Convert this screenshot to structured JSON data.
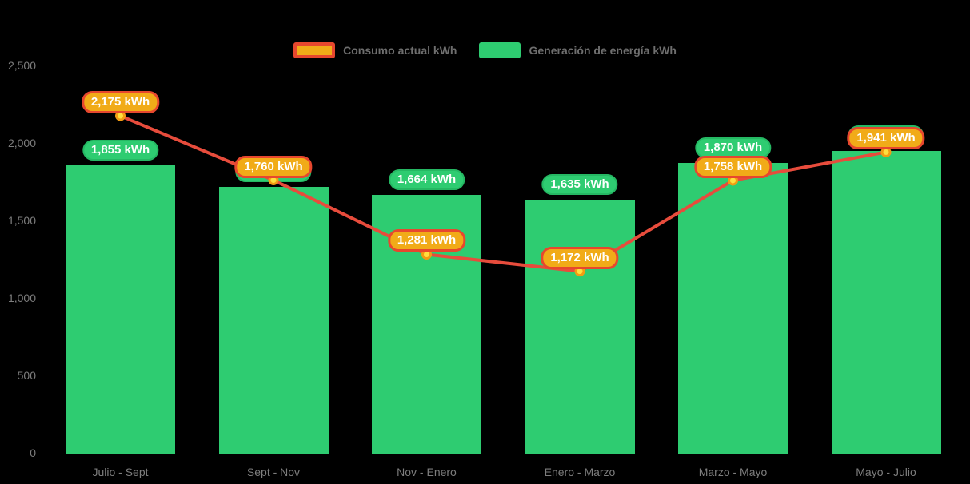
{
  "colors": {
    "background": "#000000",
    "bar": "#2ecc71",
    "bar_badge_fill": "#2ecc71",
    "bar_badge_border": "#25b863",
    "line": "#e74c3c",
    "point_ring": "#f39c12",
    "point_core": "#ffdf3f",
    "consumption_badge_fill": "#f1ab18",
    "consumption_badge_border": "#e7472e",
    "axis_text": "#7d7d7d",
    "legend_text": "#6e6e6e",
    "badge_text": "#ffffff"
  },
  "legend": {
    "items": [
      {
        "label": "Consumo actual kWh",
        "swatch": "consumption"
      },
      {
        "label": "Generación de energía kWh",
        "swatch": "generation"
      }
    ]
  },
  "chart_data": {
    "type": "combo",
    "categories": [
      "Julio - Sept",
      "Sept - Nov",
      "Nov - Enero",
      "Enero - Marzo",
      "Marzo - Mayo",
      "Mayo - Julio"
    ],
    "series": [
      {
        "name": "Generación de energía kWh",
        "type": "bar",
        "color": "#2ecc71",
        "values": [
          1855,
          1715,
          1664,
          1635,
          1870,
          1950
        ],
        "labels": [
          "1,855 kWh",
          "1,715 kWh",
          "1,664 kWh",
          "1,635 kWh",
          "1,870 kWh",
          "1,950 kWh"
        ]
      },
      {
        "name": "Consumo actual kWh",
        "type": "line",
        "color": "#e74c3c",
        "values": [
          2175,
          1760,
          1281,
          1172,
          1758,
          1941
        ],
        "labels": [
          "2,175 kWh",
          "1,760 kWh",
          "1,281 kWh",
          "1,172 kWh",
          "1,758 kWh",
          "1,941 kWh"
        ]
      }
    ],
    "xlabel": "",
    "ylabel": "",
    "ylim": [
      0,
      2500
    ],
    "yticks": {
      "values": [
        0,
        500,
        1000,
        1500,
        2000,
        2500
      ],
      "labels": [
        "0",
        "500",
        "1,000",
        "1,500",
        "2,000",
        "2,500"
      ]
    },
    "grid": false,
    "legend_position": "top"
  }
}
